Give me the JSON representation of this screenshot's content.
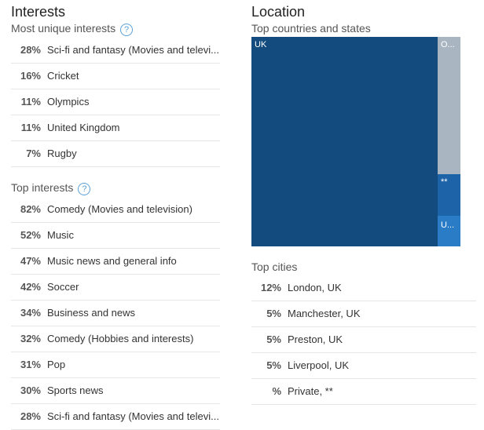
{
  "interests": {
    "title": "Interests",
    "most_unique": {
      "title": "Most unique interests",
      "rows": [
        {
          "pct": "28%",
          "label": "Sci-fi and fantasy (Movies and televi..."
        },
        {
          "pct": "16%",
          "label": "Cricket"
        },
        {
          "pct": "11%",
          "label": "Olympics"
        },
        {
          "pct": "11%",
          "label": "United Kingdom"
        },
        {
          "pct": "7%",
          "label": "Rugby"
        }
      ]
    },
    "top": {
      "title": "Top interests",
      "rows": [
        {
          "pct": "82%",
          "label": "Comedy (Movies and television)"
        },
        {
          "pct": "52%",
          "label": "Music"
        },
        {
          "pct": "47%",
          "label": "Music news and general info"
        },
        {
          "pct": "42%",
          "label": "Soccer"
        },
        {
          "pct": "34%",
          "label": "Business and news"
        },
        {
          "pct": "32%",
          "label": "Comedy (Hobbies and interests)"
        },
        {
          "pct": "31%",
          "label": "Pop"
        },
        {
          "pct": "30%",
          "label": "Sports news"
        },
        {
          "pct": "28%",
          "label": "Sci-fi and fantasy (Movies and televi..."
        }
      ]
    }
  },
  "location": {
    "title": "Location",
    "countries": {
      "title": "Top countries and states",
      "blocks": [
        "UK",
        "O...",
        "**",
        "U..."
      ]
    },
    "cities": {
      "title": "Top cities",
      "rows": [
        {
          "pct": "12%",
          "label": "London, UK"
        },
        {
          "pct": "5%",
          "label": "Manchester, UK"
        },
        {
          "pct": "5%",
          "label": "Preston, UK"
        },
        {
          "pct": "5%",
          "label": "Liverpool, UK"
        },
        {
          "pct": "%",
          "label": "Private, **"
        }
      ]
    }
  }
}
